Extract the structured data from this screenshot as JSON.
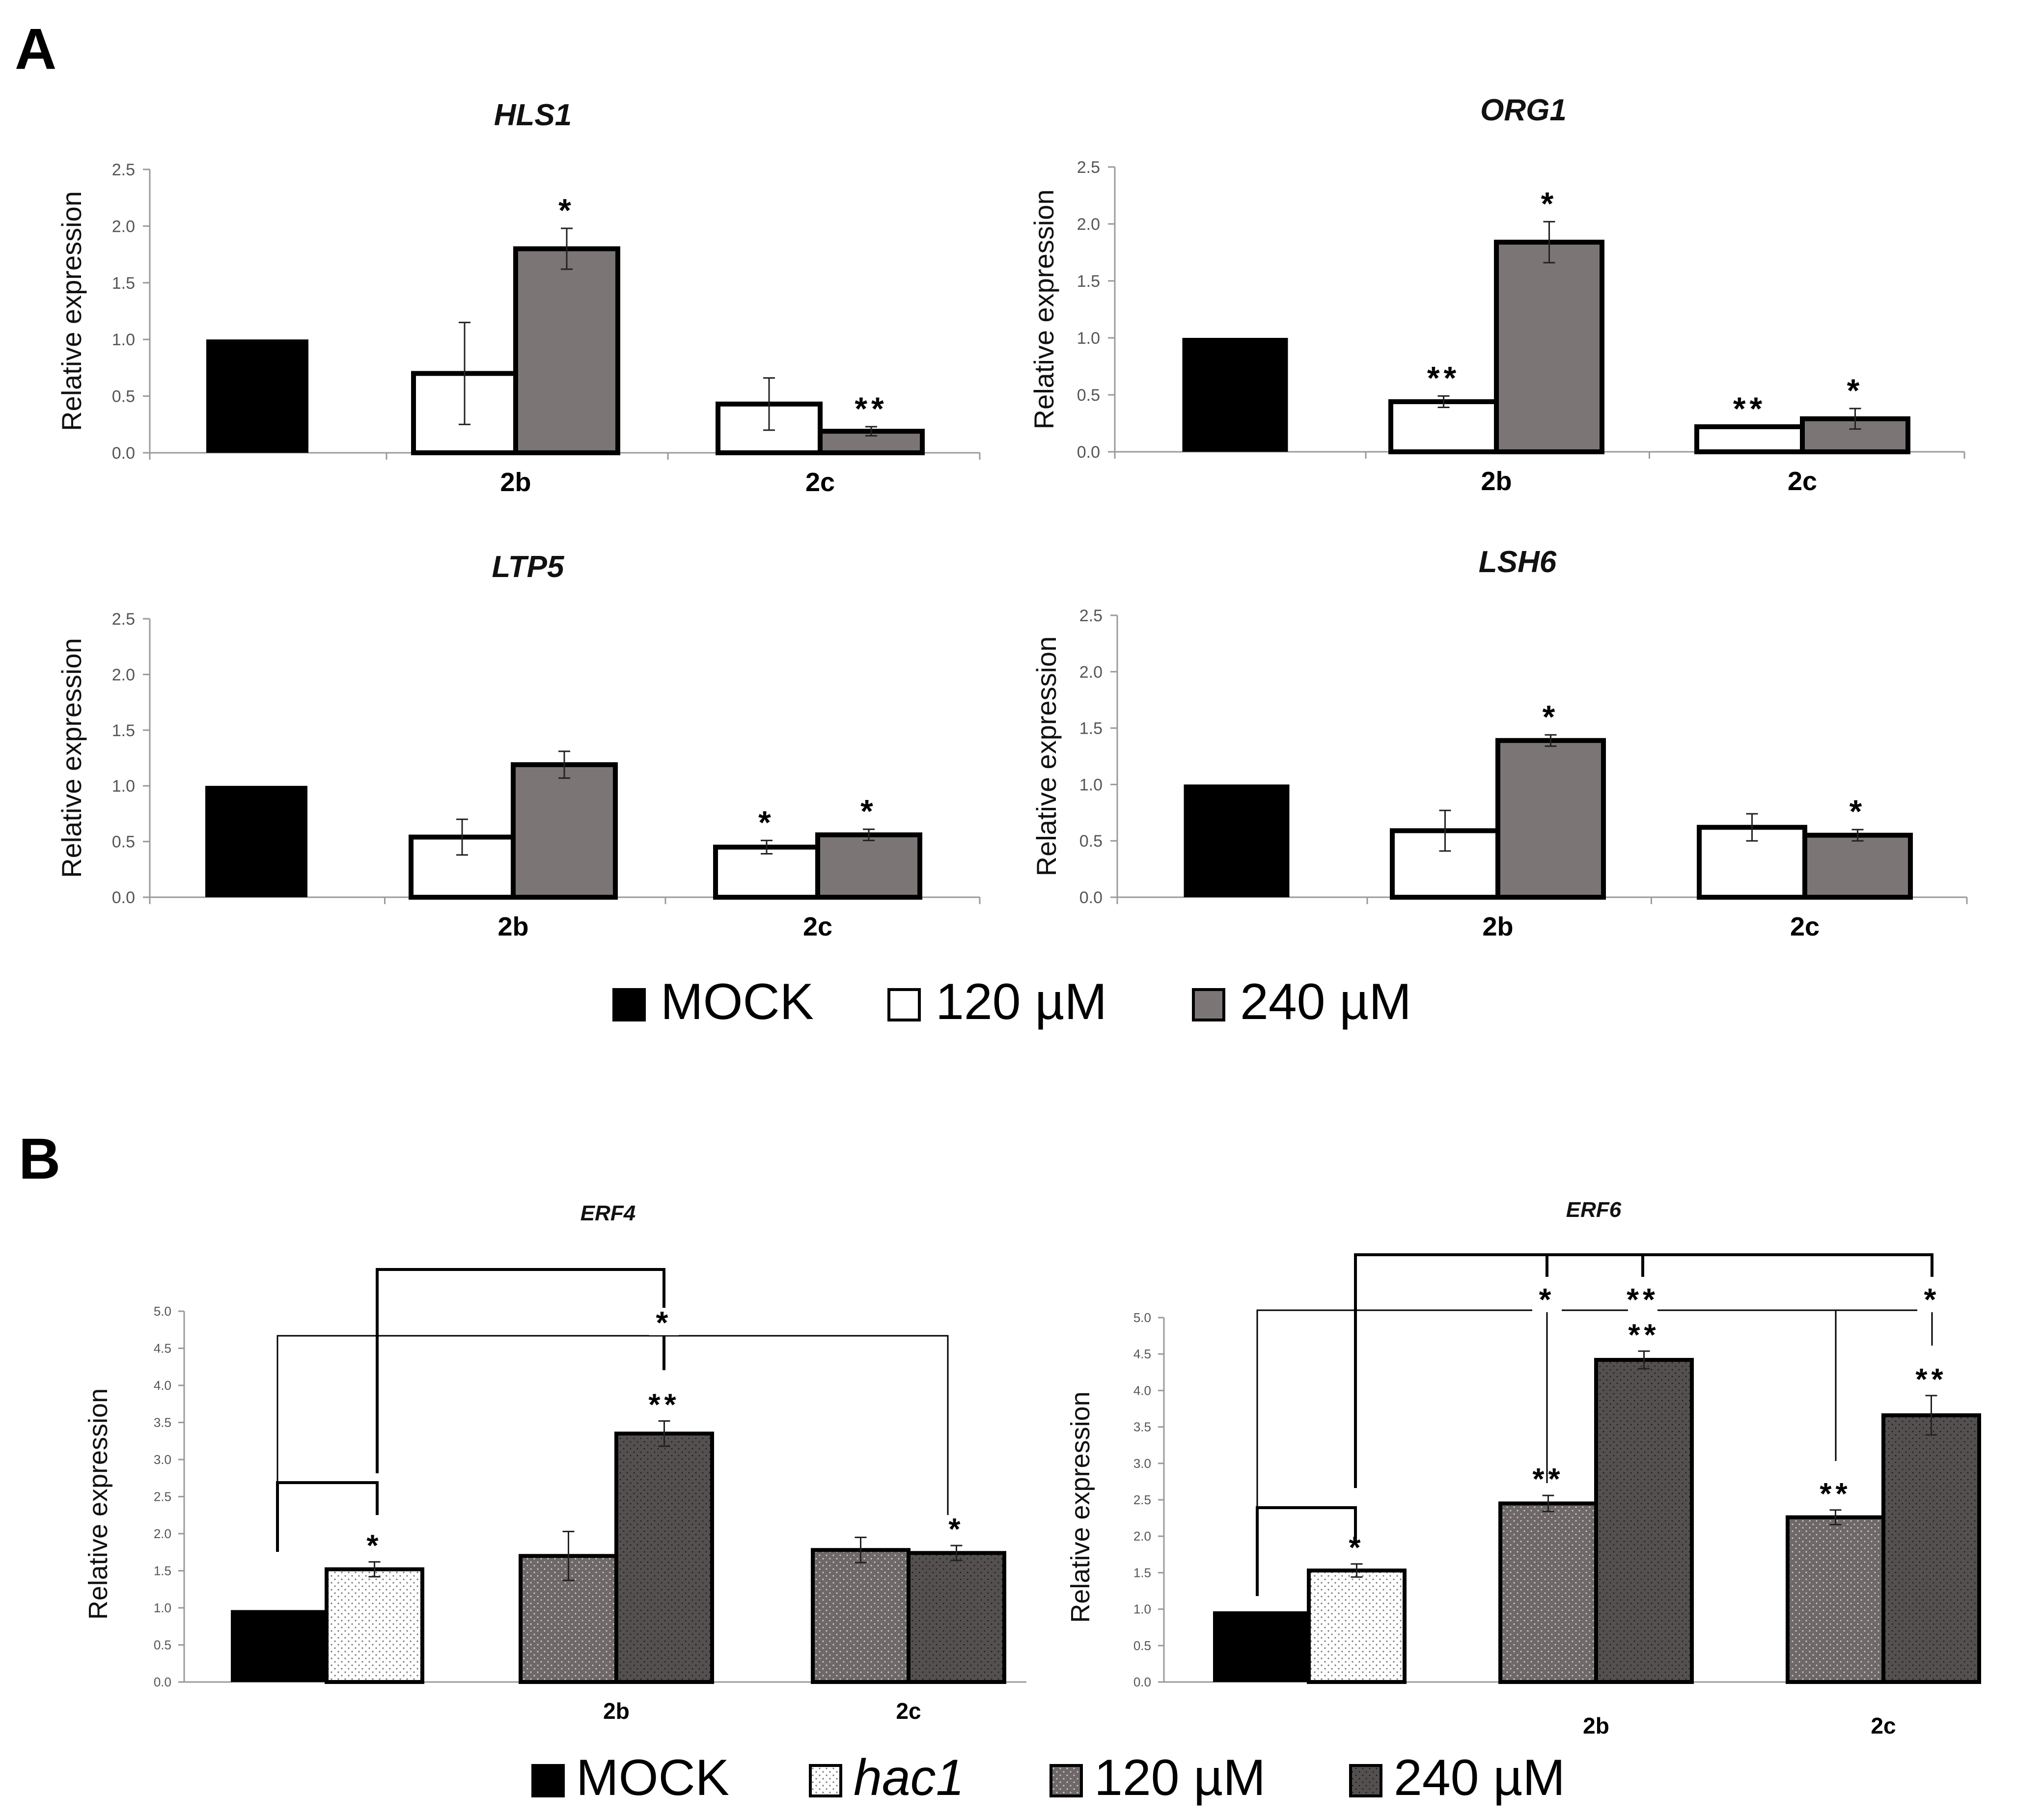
{
  "panels": {
    "a": {
      "label": "A"
    },
    "b": {
      "label": "B"
    }
  },
  "chart_data": [
    {
      "id": "hls1",
      "type": "bar",
      "title": "HLS1",
      "ylabel": "Relative expression",
      "ylim": [
        0,
        2.5
      ],
      "y_ticks": [
        "0.0",
        "0.5",
        "1.0",
        "1.5",
        "2.0",
        "2.5"
      ],
      "categories": [
        "",
        "2b",
        "2c"
      ],
      "series": [
        {
          "name": "MOCK",
          "values": [
            1.0,
            null,
            null
          ],
          "errors": [
            null,
            null,
            null
          ],
          "sig": [
            "",
            "",
            ""
          ]
        },
        {
          "name": "120 µM",
          "values": [
            null,
            0.7,
            0.43
          ],
          "errors": [
            null,
            0.45,
            0.23
          ],
          "sig": [
            "",
            "",
            ""
          ]
        },
        {
          "name": "240 µM",
          "values": [
            null,
            1.8,
            0.19
          ],
          "errors": [
            null,
            0.18,
            0.04
          ],
          "sig": [
            "",
            "*",
            "**"
          ]
        }
      ]
    },
    {
      "id": "org1",
      "type": "bar",
      "title": "ORG1",
      "ylabel": "Relative expression",
      "ylim": [
        0,
        2.5
      ],
      "y_ticks": [
        "0.0",
        "0.5",
        "1.0",
        "1.5",
        "2.0",
        "2.5"
      ],
      "categories": [
        "",
        "2b",
        "2c"
      ],
      "series": [
        {
          "name": "MOCK",
          "values": [
            1.0,
            null,
            null
          ],
          "errors": [
            null,
            null,
            null
          ],
          "sig": [
            "",
            "",
            ""
          ]
        },
        {
          "name": "120 µM",
          "values": [
            null,
            0.44,
            0.22
          ],
          "errors": [
            null,
            0.05,
            0.0
          ],
          "sig": [
            "",
            "**",
            "**"
          ]
        },
        {
          "name": "240 µM",
          "values": [
            null,
            1.84,
            0.29
          ],
          "errors": [
            null,
            0.18,
            0.09
          ],
          "sig": [
            "",
            "*",
            "*"
          ]
        }
      ]
    },
    {
      "id": "ltp5",
      "type": "bar",
      "title": "LTP5",
      "ylabel": "Relative expression",
      "ylim": [
        0,
        2.5
      ],
      "y_ticks": [
        "0.0",
        "0.5",
        "1.0",
        "1.5",
        "2.0",
        "2.5"
      ],
      "categories": [
        "",
        "2b",
        "2c"
      ],
      "series": [
        {
          "name": "MOCK",
          "values": [
            1.0,
            null,
            null
          ],
          "errors": [
            null,
            null,
            null
          ],
          "sig": [
            "",
            "",
            ""
          ]
        },
        {
          "name": "120 µM",
          "values": [
            null,
            0.54,
            0.45
          ],
          "errors": [
            null,
            0.16,
            0.06
          ],
          "sig": [
            "",
            "",
            "*"
          ]
        },
        {
          "name": "240 µM",
          "values": [
            null,
            1.19,
            0.56
          ],
          "errors": [
            null,
            0.12,
            0.05
          ],
          "sig": [
            "",
            "",
            "*"
          ]
        }
      ]
    },
    {
      "id": "lsh6",
      "type": "bar",
      "title": "LSH6",
      "ylabel": "Relative expression",
      "ylim": [
        0,
        2.5
      ],
      "y_ticks": [
        "0.0",
        "0.5",
        "1.0",
        "1.5",
        "2.0",
        "2.5"
      ],
      "categories": [
        "",
        "2b",
        "2c"
      ],
      "series": [
        {
          "name": "MOCK",
          "values": [
            1.0,
            null,
            null
          ],
          "errors": [
            null,
            null,
            null
          ],
          "sig": [
            "",
            "",
            ""
          ]
        },
        {
          "name": "120 µM",
          "values": [
            null,
            0.59,
            0.62
          ],
          "errors": [
            null,
            0.18,
            0.12
          ],
          "sig": [
            "",
            "",
            ""
          ]
        },
        {
          "name": "240 µM",
          "values": [
            null,
            1.39,
            0.55
          ],
          "errors": [
            null,
            0.05,
            0.05
          ],
          "sig": [
            "",
            "*",
            "*"
          ]
        }
      ]
    },
    {
      "id": "erf4",
      "type": "bar",
      "title": "ERF4",
      "ylabel": "Relative expression",
      "ylim": [
        0,
        5.0
      ],
      "y_ticks": [
        "0.0",
        "0.5",
        "1.0",
        "1.5",
        "2.0",
        "2.5",
        "3.0",
        "3.5",
        "4.0",
        "4.5",
        "5.0"
      ],
      "categories": [
        "",
        "2b",
        "2c"
      ],
      "bars": [
        {
          "series": "MOCK",
          "cat": 0,
          "value": 0.97,
          "error": null,
          "sig": ""
        },
        {
          "series": "hac1",
          "cat": 0,
          "value": 1.52,
          "error": 0.1,
          "sig": "*"
        },
        {
          "series": "120 µM",
          "cat": 1,
          "value": 1.7,
          "error": 0.33,
          "sig": ""
        },
        {
          "series": "240 µM",
          "cat": 1,
          "value": 3.35,
          "error": 0.17,
          "sig": "**"
        },
        {
          "series": "120 µM",
          "cat": 2,
          "value": 1.78,
          "error": 0.17,
          "sig": ""
        },
        {
          "series": "240 µM",
          "cat": 2,
          "value": 1.74,
          "error": 0.1,
          "sig": "*"
        }
      ],
      "comparison_labels": [
        "*"
      ]
    },
    {
      "id": "erf6",
      "type": "bar",
      "title": "ERF6",
      "ylabel": "Relative expression",
      "ylim": [
        0,
        5.0
      ],
      "y_ticks": [
        "0.0",
        "0.5",
        "1.0",
        "1.5",
        "2.0",
        "2.5",
        "3.0",
        "3.5",
        "4.0",
        "4.5",
        "5.0"
      ],
      "categories": [
        "",
        "2b",
        "2c"
      ],
      "bars": [
        {
          "series": "MOCK",
          "cat": 0,
          "value": 0.97,
          "error": null,
          "sig": ""
        },
        {
          "series": "hac1",
          "cat": 0,
          "value": 1.53,
          "error": 0.09,
          "sig": "*"
        },
        {
          "series": "120 µM",
          "cat": 1,
          "value": 2.45,
          "error": 0.11,
          "sig": "**"
        },
        {
          "series": "240 µM",
          "cat": 1,
          "value": 4.42,
          "error": 0.12,
          "sig": "**"
        },
        {
          "series": "120 µM",
          "cat": 2,
          "value": 2.26,
          "error": 0.1,
          "sig": "**"
        },
        {
          "series": "240 µM",
          "cat": 2,
          "value": 3.66,
          "error": 0.27,
          "sig": "**"
        }
      ],
      "comparison_labels": [
        "*",
        "**",
        "*"
      ]
    }
  ],
  "legend_a": [
    {
      "label": "MOCK",
      "style": "mock"
    },
    {
      "label": "120 µM",
      "style": "white"
    },
    {
      "label": "240 µM",
      "style": "gray"
    }
  ],
  "legend_b": [
    {
      "label": "MOCK",
      "style": "mock"
    },
    {
      "label": "hac1",
      "style": "hac1",
      "italic": true
    },
    {
      "label": "120 µM",
      "style": "dot120"
    },
    {
      "label": "240 µM",
      "style": "dot240"
    }
  ],
  "colors": {
    "mock": "#000000",
    "white": "#ffffff",
    "gray": "#7b7675",
    "dot120": "#6e6868",
    "dot240": "#545050",
    "hac1": "#ffffff"
  }
}
